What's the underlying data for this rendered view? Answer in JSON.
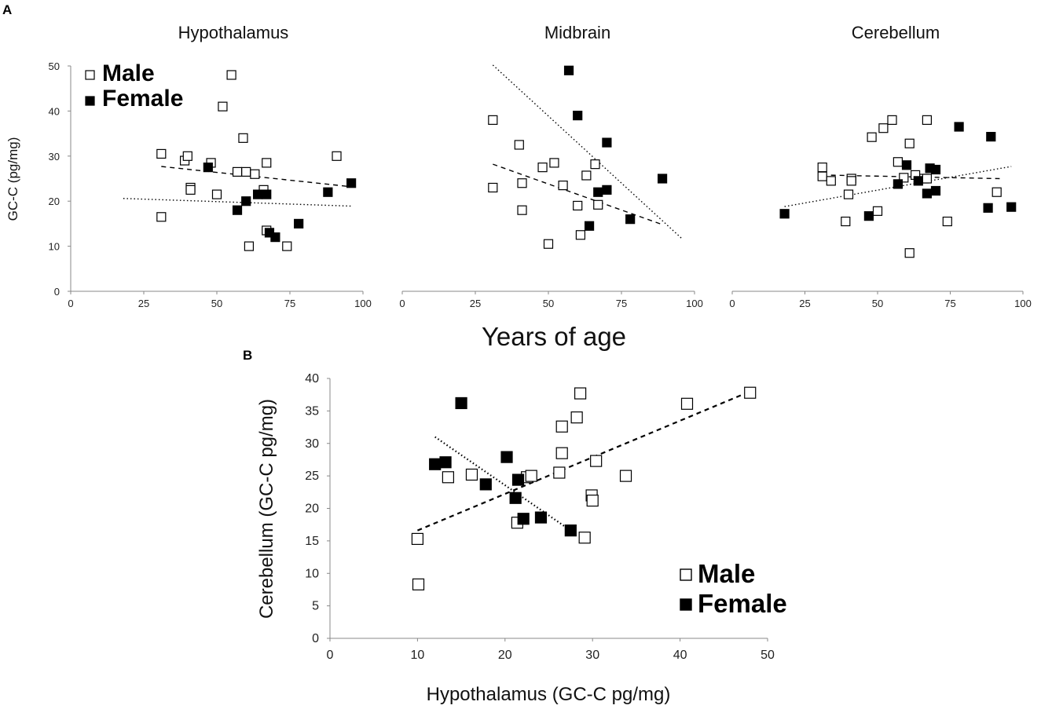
{
  "figure": {
    "panel_a_label": "A",
    "panel_b_label": "B",
    "shared_xlabel": "Years of age",
    "legend": {
      "male": "Male",
      "female": "Female"
    },
    "colors": {
      "male_fill": "#ffffff",
      "female_fill": "#000000",
      "stroke": "#000000"
    }
  },
  "chart_data": [
    {
      "id": "hypothalamus",
      "type": "scatter",
      "title": "Hypothalamus",
      "xlabel": "",
      "ylabel": "GC-C (pg/mg)",
      "xlim": [
        0,
        100
      ],
      "ylim": [
        0,
        50
      ],
      "xticks": [
        "0",
        "25",
        "50",
        "75",
        "100"
      ],
      "yticks": [
        "0",
        "10",
        "20",
        "30",
        "40",
        "50"
      ],
      "series": [
        {
          "name": "Male",
          "points": [
            [
              31,
              30.5
            ],
            [
              31,
              16.5
            ],
            [
              39,
              29
            ],
            [
              40,
              30
            ],
            [
              41,
              23
            ],
            [
              41,
              22.5
            ],
            [
              48,
              28.5
            ],
            [
              50,
              21.5
            ],
            [
              52,
              41
            ],
            [
              55,
              48
            ],
            [
              57,
              26.5
            ],
            [
              60,
              26.5
            ],
            [
              59,
              34
            ],
            [
              61,
              10
            ],
            [
              63,
              26
            ],
            [
              66,
              22.5
            ],
            [
              67,
              28.5
            ],
            [
              67,
              13.5
            ],
            [
              74,
              10
            ],
            [
              91,
              30
            ]
          ]
        },
        {
          "name": "Female",
          "points": [
            [
              47,
              27.5
            ],
            [
              57,
              18
            ],
            [
              60,
              20
            ],
            [
              64,
              21.5
            ],
            [
              67,
              21.5
            ],
            [
              68,
              13
            ],
            [
              70,
              12
            ],
            [
              78,
              15
            ],
            [
              88,
              22
            ],
            [
              96,
              24
            ]
          ]
        }
      ],
      "trendlines": [
        {
          "series": "Male",
          "style": "dotted",
          "from": [
            18,
            20.6
          ],
          "to": [
            96,
            18.9
          ]
        },
        {
          "series": "Female",
          "style": "dashed",
          "from": [
            31,
            27.7
          ],
          "to": [
            96,
            23.2
          ]
        }
      ]
    },
    {
      "id": "midbrain",
      "type": "scatter",
      "title": "Midbrain",
      "xlabel": "",
      "ylabel": "",
      "xlim": [
        0,
        100
      ],
      "ylim": [
        0,
        50
      ],
      "xticks": [
        "0",
        "25",
        "50",
        "75",
        "100"
      ],
      "yticks": [],
      "series": [
        {
          "name": "Male",
          "points": [
            [
              31,
              38
            ],
            [
              31,
              23
            ],
            [
              40,
              32.5
            ],
            [
              41,
              24
            ],
            [
              41,
              18
            ],
            [
              48,
              27.5
            ],
            [
              50,
              10.5
            ],
            [
              52,
              28.5
            ],
            [
              55,
              23.5
            ],
            [
              60,
              19
            ],
            [
              61,
              12.5
            ],
            [
              63,
              25.7
            ],
            [
              66,
              28.2
            ],
            [
              67,
              19.2
            ]
          ]
        },
        {
          "name": "Female",
          "points": [
            [
              57,
              49
            ],
            [
              60,
              39
            ],
            [
              64,
              14.5
            ],
            [
              67,
              22
            ],
            [
              70,
              22.5
            ],
            [
              70,
              33
            ],
            [
              78,
              16
            ],
            [
              89,
              25
            ]
          ]
        }
      ],
      "trendlines": [
        {
          "series": "Female",
          "style": "dotted",
          "from": [
            31,
            50.2
          ],
          "to": [
            96,
            11.5
          ]
        },
        {
          "series": "Male",
          "style": "dashed",
          "from": [
            31,
            28.2
          ],
          "to": [
            89,
            14.8
          ]
        }
      ]
    },
    {
      "id": "cerebellum",
      "type": "scatter",
      "title": "Cerebellum",
      "xlabel": "",
      "ylabel": "",
      "xlim": [
        0,
        100
      ],
      "ylim": [
        0,
        50
      ],
      "xticks": [
        "0",
        "25",
        "50",
        "75",
        "100"
      ],
      "yticks": [],
      "series": [
        {
          "name": "Male",
          "points": [
            [
              31,
              27.5
            ],
            [
              31,
              25.5
            ],
            [
              34,
              24.5
            ],
            [
              39,
              15.5
            ],
            [
              40,
              21.5
            ],
            [
              41,
              25
            ],
            [
              41,
              24.5
            ],
            [
              48,
              34.2
            ],
            [
              50,
              17.8
            ],
            [
              52,
              36.2
            ],
            [
              55,
              38
            ],
            [
              57,
              28.7
            ],
            [
              59,
              25.2
            ],
            [
              61,
              32.8
            ],
            [
              61,
              8.5
            ],
            [
              63,
              25.8
            ],
            [
              66,
              25
            ],
            [
              67,
              38
            ],
            [
              67,
              25
            ],
            [
              74,
              15.5
            ],
            [
              91,
              22
            ]
          ]
        },
        {
          "name": "Female",
          "points": [
            [
              18,
              17.2
            ],
            [
              47,
              16.7
            ],
            [
              57,
              23.8
            ],
            [
              60,
              28
            ],
            [
              64,
              24.5
            ],
            [
              67,
              21.7
            ],
            [
              68,
              27.3
            ],
            [
              70,
              22.3
            ],
            [
              70,
              27
            ],
            [
              78,
              36.5
            ],
            [
              88,
              18.5
            ],
            [
              89,
              34.3
            ],
            [
              96,
              18.7
            ]
          ]
        }
      ],
      "trendlines": [
        {
          "series": "Male",
          "style": "dotted",
          "from": [
            18,
            18.8
          ],
          "to": [
            96,
            27.7
          ]
        },
        {
          "series": "Female",
          "style": "dashed",
          "from": [
            31,
            25.8
          ],
          "to": [
            92,
            25
          ]
        }
      ]
    },
    {
      "id": "hypothalamus-vs-cerebellum",
      "type": "scatter",
      "title": "",
      "xlabel": "Hypothalamus (GC-C pg/mg)",
      "ylabel": "Cerebellum (GC-C pg/mg)",
      "xlim": [
        0,
        50
      ],
      "ylim": [
        0,
        40
      ],
      "xticks": [
        "0",
        "10",
        "20",
        "30",
        "40",
        "50"
      ],
      "yticks": [
        "0",
        "5",
        "10",
        "15",
        "20",
        "25",
        "30",
        "35",
        "40"
      ],
      "series": [
        {
          "name": "Male",
          "points": [
            [
              10,
              15.3
            ],
            [
              10.1,
              8.3
            ],
            [
              13.5,
              24.8
            ],
            [
              16.2,
              25.2
            ],
            [
              21.4,
              17.8
            ],
            [
              22.5,
              24.8
            ],
            [
              23,
              25
            ],
            [
              26.2,
              25.5
            ],
            [
              26.5,
              28.5
            ],
            [
              26.5,
              32.6
            ],
            [
              28.2,
              34
            ],
            [
              28.6,
              37.7
            ],
            [
              29.1,
              15.5
            ],
            [
              29.9,
              22
            ],
            [
              30,
              21.2
            ],
            [
              30.4,
              27.3
            ],
            [
              33.8,
              25
            ],
            [
              40.8,
              36.1
            ],
            [
              48,
              37.8
            ]
          ]
        },
        {
          "name": "Female",
          "points": [
            [
              12,
              26.8
            ],
            [
              13.2,
              27.1
            ],
            [
              15,
              36.2
            ],
            [
              17.8,
              23.7
            ],
            [
              20.2,
              27.9
            ],
            [
              21.2,
              21.6
            ],
            [
              21.5,
              24.4
            ],
            [
              22.1,
              18.4
            ],
            [
              24.1,
              18.6
            ],
            [
              27.5,
              16.6
            ]
          ]
        }
      ],
      "trendlines": [
        {
          "series": "Male",
          "style": "dashed",
          "from": [
            10,
            16.6
          ],
          "to": [
            48,
            38
          ]
        },
        {
          "series": "Female",
          "style": "dotted",
          "from": [
            12,
            31
          ],
          "to": [
            27.5,
            16.6
          ]
        }
      ]
    }
  ]
}
